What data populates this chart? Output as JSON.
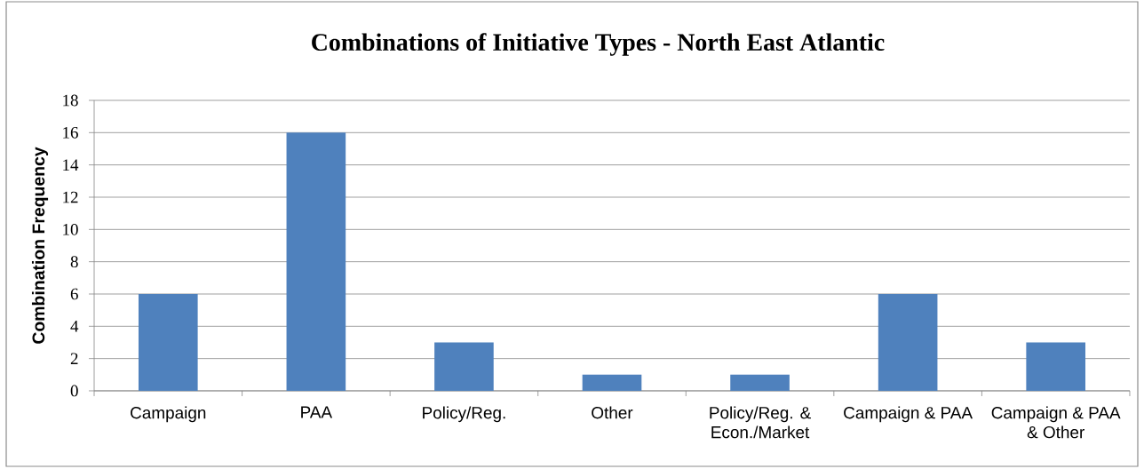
{
  "chart_data": {
    "type": "bar",
    "title": "Combinations of Initiative Types - North East Atlantic",
    "ylabel": "Combination Frequency",
    "categories": [
      "Campaign",
      "PAA",
      "Policy/Reg.",
      "Other",
      "Policy/Reg. & Econ./Market",
      "Campaign & PAA",
      "Campaign & PAA & Other"
    ],
    "values": [
      6,
      16,
      3,
      1,
      1,
      6,
      3
    ],
    "color": "#4f81bd",
    "ylim": [
      0,
      18
    ],
    "yticks": [
      0,
      2,
      4,
      6,
      8,
      10,
      12,
      14,
      16,
      18
    ],
    "grid": "y"
  }
}
